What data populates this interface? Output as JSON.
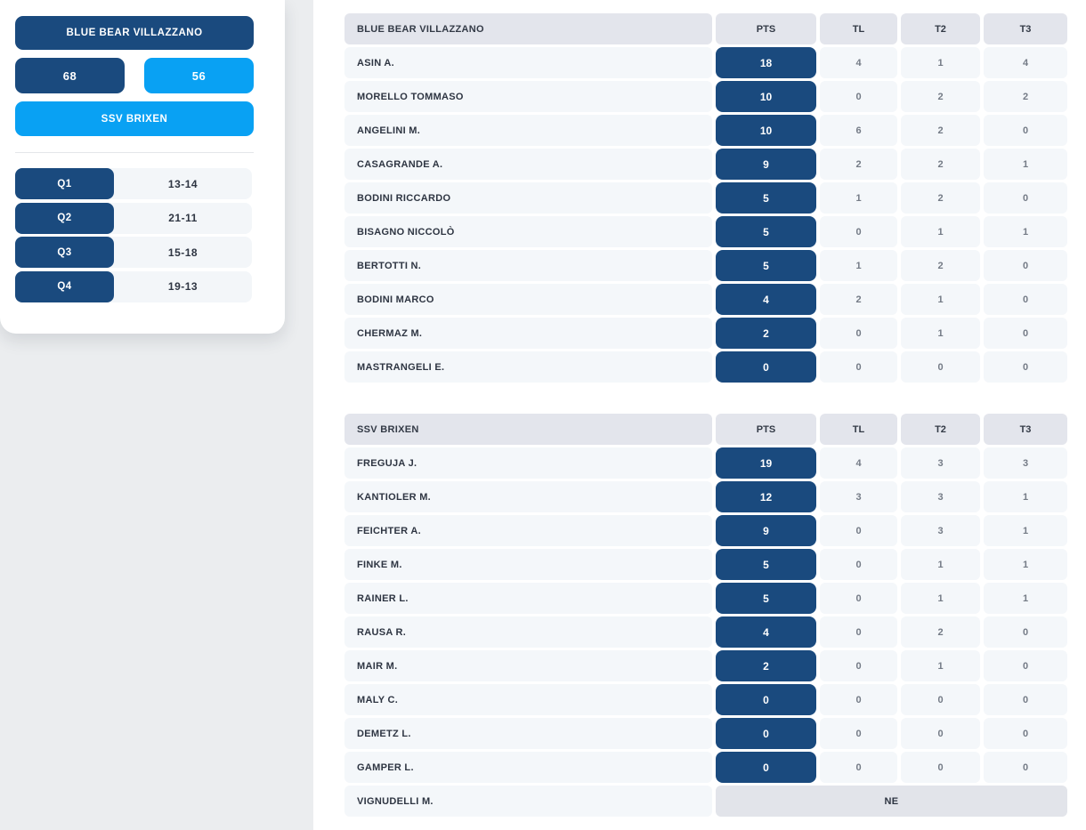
{
  "colors": {
    "navy": "#1a4a7e",
    "azure": "#09a1f3",
    "page_gray": "#ebedef",
    "header_cell_bg": "#e3e5ec",
    "row_cell_bg": "#f4f7fa",
    "ne_cell_bg": "#e2e4ea",
    "sidebar_row_bg": "#f3f6f9",
    "name_text": "#2e3542",
    "stat_text": "#747b86"
  },
  "scoreboard": {
    "home_team": "BLUE BEAR VILLAZZANO",
    "away_team": "SSV BRIXEN",
    "home_score": "68",
    "away_score": "56",
    "quarters": [
      {
        "label": "Q1",
        "score": "13-14"
      },
      {
        "label": "Q2",
        "score": "21-11"
      },
      {
        "label": "Q3",
        "score": "15-18"
      },
      {
        "label": "Q4",
        "score": "19-13"
      }
    ]
  },
  "tables": [
    {
      "team": "BLUE BEAR VILLAZZANO",
      "columns": [
        "PTS",
        "TL",
        "T2",
        "T3"
      ],
      "players": [
        {
          "name": "ASIN A.",
          "pts": "18",
          "tl": "4",
          "t2": "1",
          "t3": "4"
        },
        {
          "name": "MORELLO TOMMASO",
          "pts": "10",
          "tl": "0",
          "t2": "2",
          "t3": "2"
        },
        {
          "name": "ANGELINI M.",
          "pts": "10",
          "tl": "6",
          "t2": "2",
          "t3": "0"
        },
        {
          "name": "CASAGRANDE A.",
          "pts": "9",
          "tl": "2",
          "t2": "2",
          "t3": "1"
        },
        {
          "name": "BODINI RICCARDO",
          "pts": "5",
          "tl": "1",
          "t2": "2",
          "t3": "0"
        },
        {
          "name": "BISAGNO NICCOLÒ",
          "pts": "5",
          "tl": "0",
          "t2": "1",
          "t3": "1"
        },
        {
          "name": "BERTOTTI N.",
          "pts": "5",
          "tl": "1",
          "t2": "2",
          "t3": "0"
        },
        {
          "name": "BODINI MARCO",
          "pts": "4",
          "tl": "2",
          "t2": "1",
          "t3": "0"
        },
        {
          "name": "CHERMAZ M.",
          "pts": "2",
          "tl": "0",
          "t2": "1",
          "t3": "0"
        },
        {
          "name": "MASTRANGELI E.",
          "pts": "0",
          "tl": "0",
          "t2": "0",
          "t3": "0"
        }
      ]
    },
    {
      "team": "SSV BRIXEN",
      "columns": [
        "PTS",
        "TL",
        "T2",
        "T3"
      ],
      "players": [
        {
          "name": "FREGUJA J.",
          "pts": "19",
          "tl": "4",
          "t2": "3",
          "t3": "3"
        },
        {
          "name": "KANTIOLER M.",
          "pts": "12",
          "tl": "3",
          "t2": "3",
          "t3": "1"
        },
        {
          "name": "FEICHTER A.",
          "pts": "9",
          "tl": "0",
          "t2": "3",
          "t3": "1"
        },
        {
          "name": "FINKE M.",
          "pts": "5",
          "tl": "0",
          "t2": "1",
          "t3": "1"
        },
        {
          "name": "RAINER L.",
          "pts": "5",
          "tl": "0",
          "t2": "1",
          "t3": "1"
        },
        {
          "name": "RAUSA R.",
          "pts": "4",
          "tl": "0",
          "t2": "2",
          "t3": "0"
        },
        {
          "name": "MAIR M.",
          "pts": "2",
          "tl": "0",
          "t2": "1",
          "t3": "0"
        },
        {
          "name": "MALY C.",
          "pts": "0",
          "tl": "0",
          "t2": "0",
          "t3": "0"
        },
        {
          "name": "DEMETZ L.",
          "pts": "0",
          "tl": "0",
          "t2": "0",
          "t3": "0"
        },
        {
          "name": "GAMPER L.",
          "pts": "0",
          "tl": "0",
          "t2": "0",
          "t3": "0"
        },
        {
          "name": "VIGNUDELLI M.",
          "ne": "NE"
        }
      ]
    }
  ]
}
